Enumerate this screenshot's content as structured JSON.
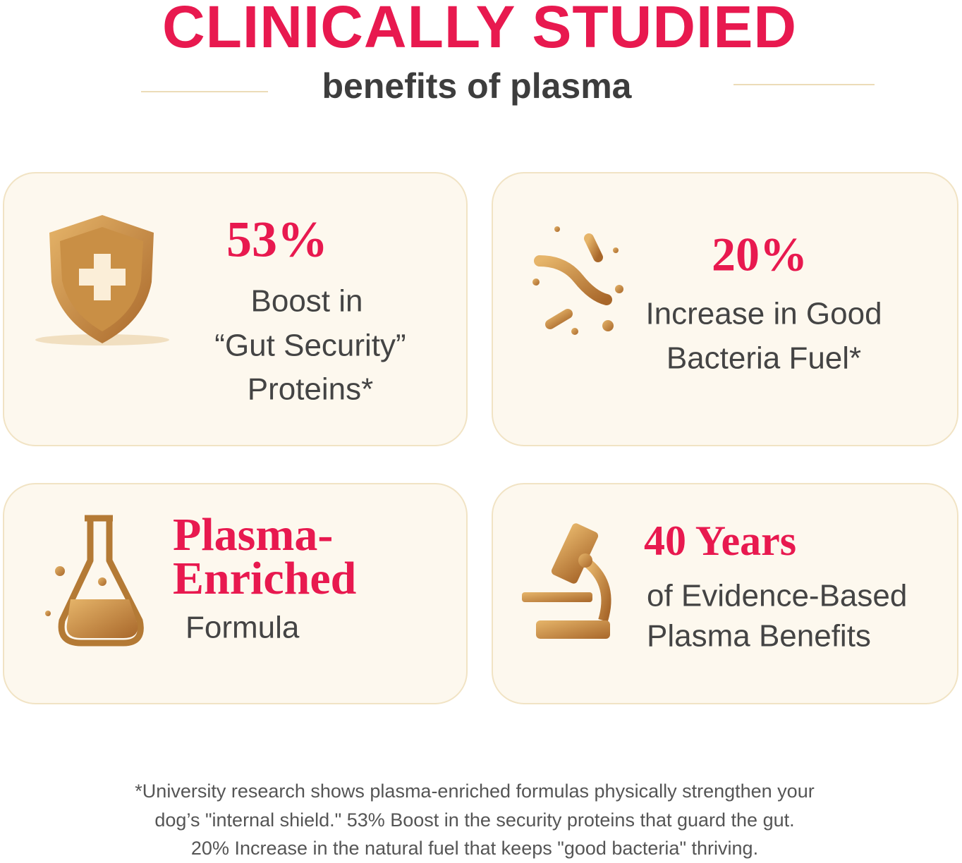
{
  "header": {
    "title": "CLINICALLY STUDIED",
    "subtitle": "benefits of plasma"
  },
  "cards": [
    {
      "headline": [
        "53%"
      ],
      "lines": [
        "Boost in",
        "“Gut Security”",
        "Proteins*"
      ]
    },
    {
      "headline": [
        "20%"
      ],
      "lines": [
        "Increase in Good",
        "Bacteria Fuel*"
      ]
    },
    {
      "headline": [
        "Plasma-",
        "Enriched"
      ],
      "lines": [
        "Formula"
      ]
    },
    {
      "headline": [
        "40 Years"
      ],
      "lines": [
        "of Evidence-Based",
        "Plasma Benefits"
      ]
    }
  ],
  "footnote": [
    "*University research shows plasma-enriched formulas physically strengthen your",
    "dog’s \"internal shield.\" 53% Boost in the security proteins that guard the gut.",
    "20% Increase in the natural fuel that keeps \"good bacteria\" thriving."
  ]
}
